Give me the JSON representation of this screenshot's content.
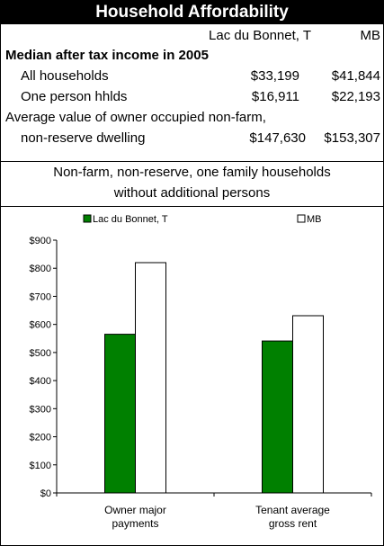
{
  "header": {
    "title": "Household Affordability"
  },
  "columns": {
    "col1": "Lac du Bonnet, T",
    "col2": "MB"
  },
  "income": {
    "heading": "Median after tax income in 2005",
    "rows": [
      {
        "label": "All households",
        "v1": "$33,199",
        "v2": "$41,844"
      },
      {
        "label": "One person hhlds",
        "v1": "$16,911",
        "v2": "$22,193"
      }
    ]
  },
  "dwelling": {
    "line1": "Average value of owner occupied non-farm,",
    "line2": "non-reserve dwelling",
    "v1": "$147,630",
    "v2": "$153,307"
  },
  "subtitle": {
    "line1": "Non-farm, non-reserve, one family households",
    "line2": "without additional persons"
  },
  "chart_data": {
    "type": "bar",
    "categories": [
      [
        "Owner major",
        "payments"
      ],
      [
        "Tenant average",
        "gross rent"
      ]
    ],
    "series": [
      {
        "name": "Lac du Bonnet, T",
        "values": [
          565,
          541
        ],
        "color": "#008000"
      },
      {
        "name": "MB",
        "values": [
          820,
          631
        ],
        "color": "#ffffff"
      }
    ],
    "ylim": [
      0,
      900
    ],
    "yticks": [
      "$0",
      "$100",
      "$200",
      "$300",
      "$400",
      "$500",
      "$600",
      "$700",
      "$800",
      "$900"
    ],
    "legend_position": "top",
    "grid": false
  }
}
